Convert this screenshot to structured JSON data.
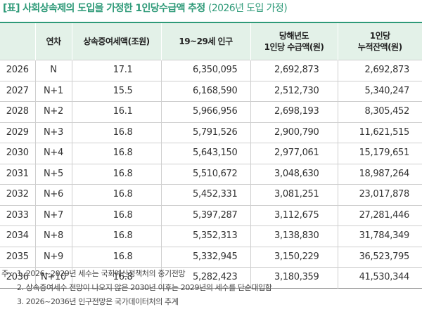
{
  "title": {
    "main": "[표] 사회상속제의 도입을 가정한 1인당수급액 추정",
    "sub": "(2026년 도입 가정)"
  },
  "table": {
    "headers": [
      {
        "line1": "",
        "line2": ""
      },
      {
        "line1": "연차",
        "line2": ""
      },
      {
        "line1": "상속증여세액(조원)",
        "line2": ""
      },
      {
        "line1": "19~29세 인구",
        "line2": ""
      },
      {
        "line1": "당해년도",
        "line2": "1인당 수급액(원)"
      },
      {
        "line1": "1인당",
        "line2": "누적잔액(원)"
      }
    ],
    "rows": [
      {
        "year": "2026",
        "term": "N",
        "tax": "17.1",
        "pop": "6,350,095",
        "per": "2,692,873",
        "cum": "2,692,873"
      },
      {
        "year": "2027",
        "term": "N+1",
        "tax": "15.5",
        "pop": "6,168,590",
        "per": "2,512,730",
        "cum": "5,340,247"
      },
      {
        "year": "2028",
        "term": "N+2",
        "tax": "16.1",
        "pop": "5,966,956",
        "per": "2,698,193",
        "cum": "8,305,452"
      },
      {
        "year": "2029",
        "term": "N+3",
        "tax": "16.8",
        "pop": "5,791,526",
        "per": "2,900,790",
        "cum": "11,621,515"
      },
      {
        "year": "2030",
        "term": "N+4",
        "tax": "16.8",
        "pop": "5,643,150",
        "per": "2,977,061",
        "cum": "15,179,651"
      },
      {
        "year": "2031",
        "term": "N+5",
        "tax": "16.8",
        "pop": "5,510,672",
        "per": "3,048,630",
        "cum": "18,987,264"
      },
      {
        "year": "2032",
        "term": "N+6",
        "tax": "16.8",
        "pop": "5,452,331",
        "per": "3,081,251",
        "cum": "23,017,878"
      },
      {
        "year": "2033",
        "term": "N+7",
        "tax": "16.8",
        "pop": "5,397,287",
        "per": "3,112,675",
        "cum": "27,281,446"
      },
      {
        "year": "2034",
        "term": "N+8",
        "tax": "16.8",
        "pop": "5,352,313",
        "per": "3,138,830",
        "cum": "31,784,349"
      },
      {
        "year": "2035",
        "term": "N+9",
        "tax": "16.8",
        "pop": "5,332,945",
        "per": "3,150,229",
        "cum": "36,523,795"
      },
      {
        "year": "2036",
        "term": "N+10",
        "tax": "16.8",
        "pop": "5,282,423",
        "per": "3,180,359",
        "cum": "41,530,344"
      }
    ]
  },
  "notes": {
    "prefix": "주 :",
    "items": [
      "1. 2026~2029년 세수는 국회예산정책처의 중기전망",
      "2. 상속증여세수 전망이 나오지 않은 2030년 이후는 2029년의 세수를 단순대입함",
      "3. 2026~2036년 인구전망은 국가데이터처의 추계"
    ]
  },
  "colors": {
    "accent": "#2e9a78",
    "header_bg": "#e3f1e8"
  }
}
